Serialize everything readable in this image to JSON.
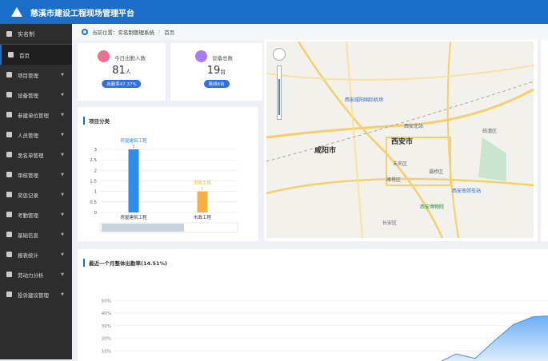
{
  "header": {
    "title": "慈溪市建设工程现场管理平台"
  },
  "sidebar": {
    "title": "实名制",
    "items": [
      {
        "label": "首页",
        "icon": "home-icon",
        "active": true
      },
      {
        "label": "项目管理",
        "icon": "building-icon"
      },
      {
        "label": "设备管理",
        "icon": "device-icon"
      },
      {
        "label": "参建单位管理",
        "icon": "company-icon"
      },
      {
        "label": "人员管理",
        "icon": "people-icon"
      },
      {
        "label": "黑名单管理",
        "icon": "user-block-icon"
      },
      {
        "label": "审核管理",
        "icon": "audit-icon"
      },
      {
        "label": "奖惩记录",
        "icon": "record-icon"
      },
      {
        "label": "考勤管理",
        "icon": "attendance-icon"
      },
      {
        "label": "基础信息",
        "icon": "info-icon"
      },
      {
        "label": "报表统计",
        "icon": "report-icon"
      },
      {
        "label": "劳动力分析",
        "icon": "worker-icon"
      },
      {
        "label": "投诉建议管理",
        "icon": "complaint-icon"
      }
    ]
  },
  "breadcrumb": {
    "prefix": "当前位置：",
    "section": "实名制管理系统",
    "sep": "/",
    "page": "首页"
  },
  "stats": [
    {
      "label": "今日出勤人数",
      "value": "81",
      "unit": "人",
      "badge": "出勤率47.37%",
      "color": "#f06e8c"
    },
    {
      "label": "设备总数",
      "value": "19",
      "unit": "台",
      "badge": "离线8台",
      "color": "#a77bf2"
    }
  ],
  "project_chart": {
    "title": "项目分类"
  },
  "map": {
    "labels": [
      "咸阳市",
      "西安市",
      "西安北站",
      "未央区",
      "灞桥区",
      "雁塔区",
      "长安区",
      "临潼区",
      "西安咸阳国际机场",
      "西安博物院",
      "西安南郊车站"
    ]
  },
  "attendance_chart": {
    "title": "最近一个月整体出勤率(14.51%)"
  },
  "chart_data": [
    {
      "type": "bar",
      "title": "项目分类",
      "categories": [
        "房屋建筑工程",
        "市政工程"
      ],
      "values": [
        3,
        1
      ],
      "colors": [
        "#2d8cf0",
        "#f7b040"
      ],
      "data_labels": [
        "房屋建筑工程\n3",
        "市政工程\n1"
      ],
      "yticks": [
        "0",
        "0.5",
        "1",
        "1.5",
        "2",
        "2.5",
        "3"
      ],
      "ylim": [
        0,
        3
      ],
      "grid": true
    },
    {
      "type": "area",
      "title": "最近一个月整体出勤率(14.51%)",
      "values": [
        0,
        0,
        0,
        0,
        0,
        0,
        0,
        0,
        0,
        0,
        0,
        0,
        0,
        0,
        0,
        0,
        0,
        0,
        7.5,
        4,
        18,
        31,
        37,
        38
      ],
      "yticks": [
        "10%",
        "20%",
        "30%",
        "40%",
        "50%"
      ],
      "ylim": [
        0,
        50
      ],
      "grid": true,
      "color": "#4a90e2"
    }
  ]
}
